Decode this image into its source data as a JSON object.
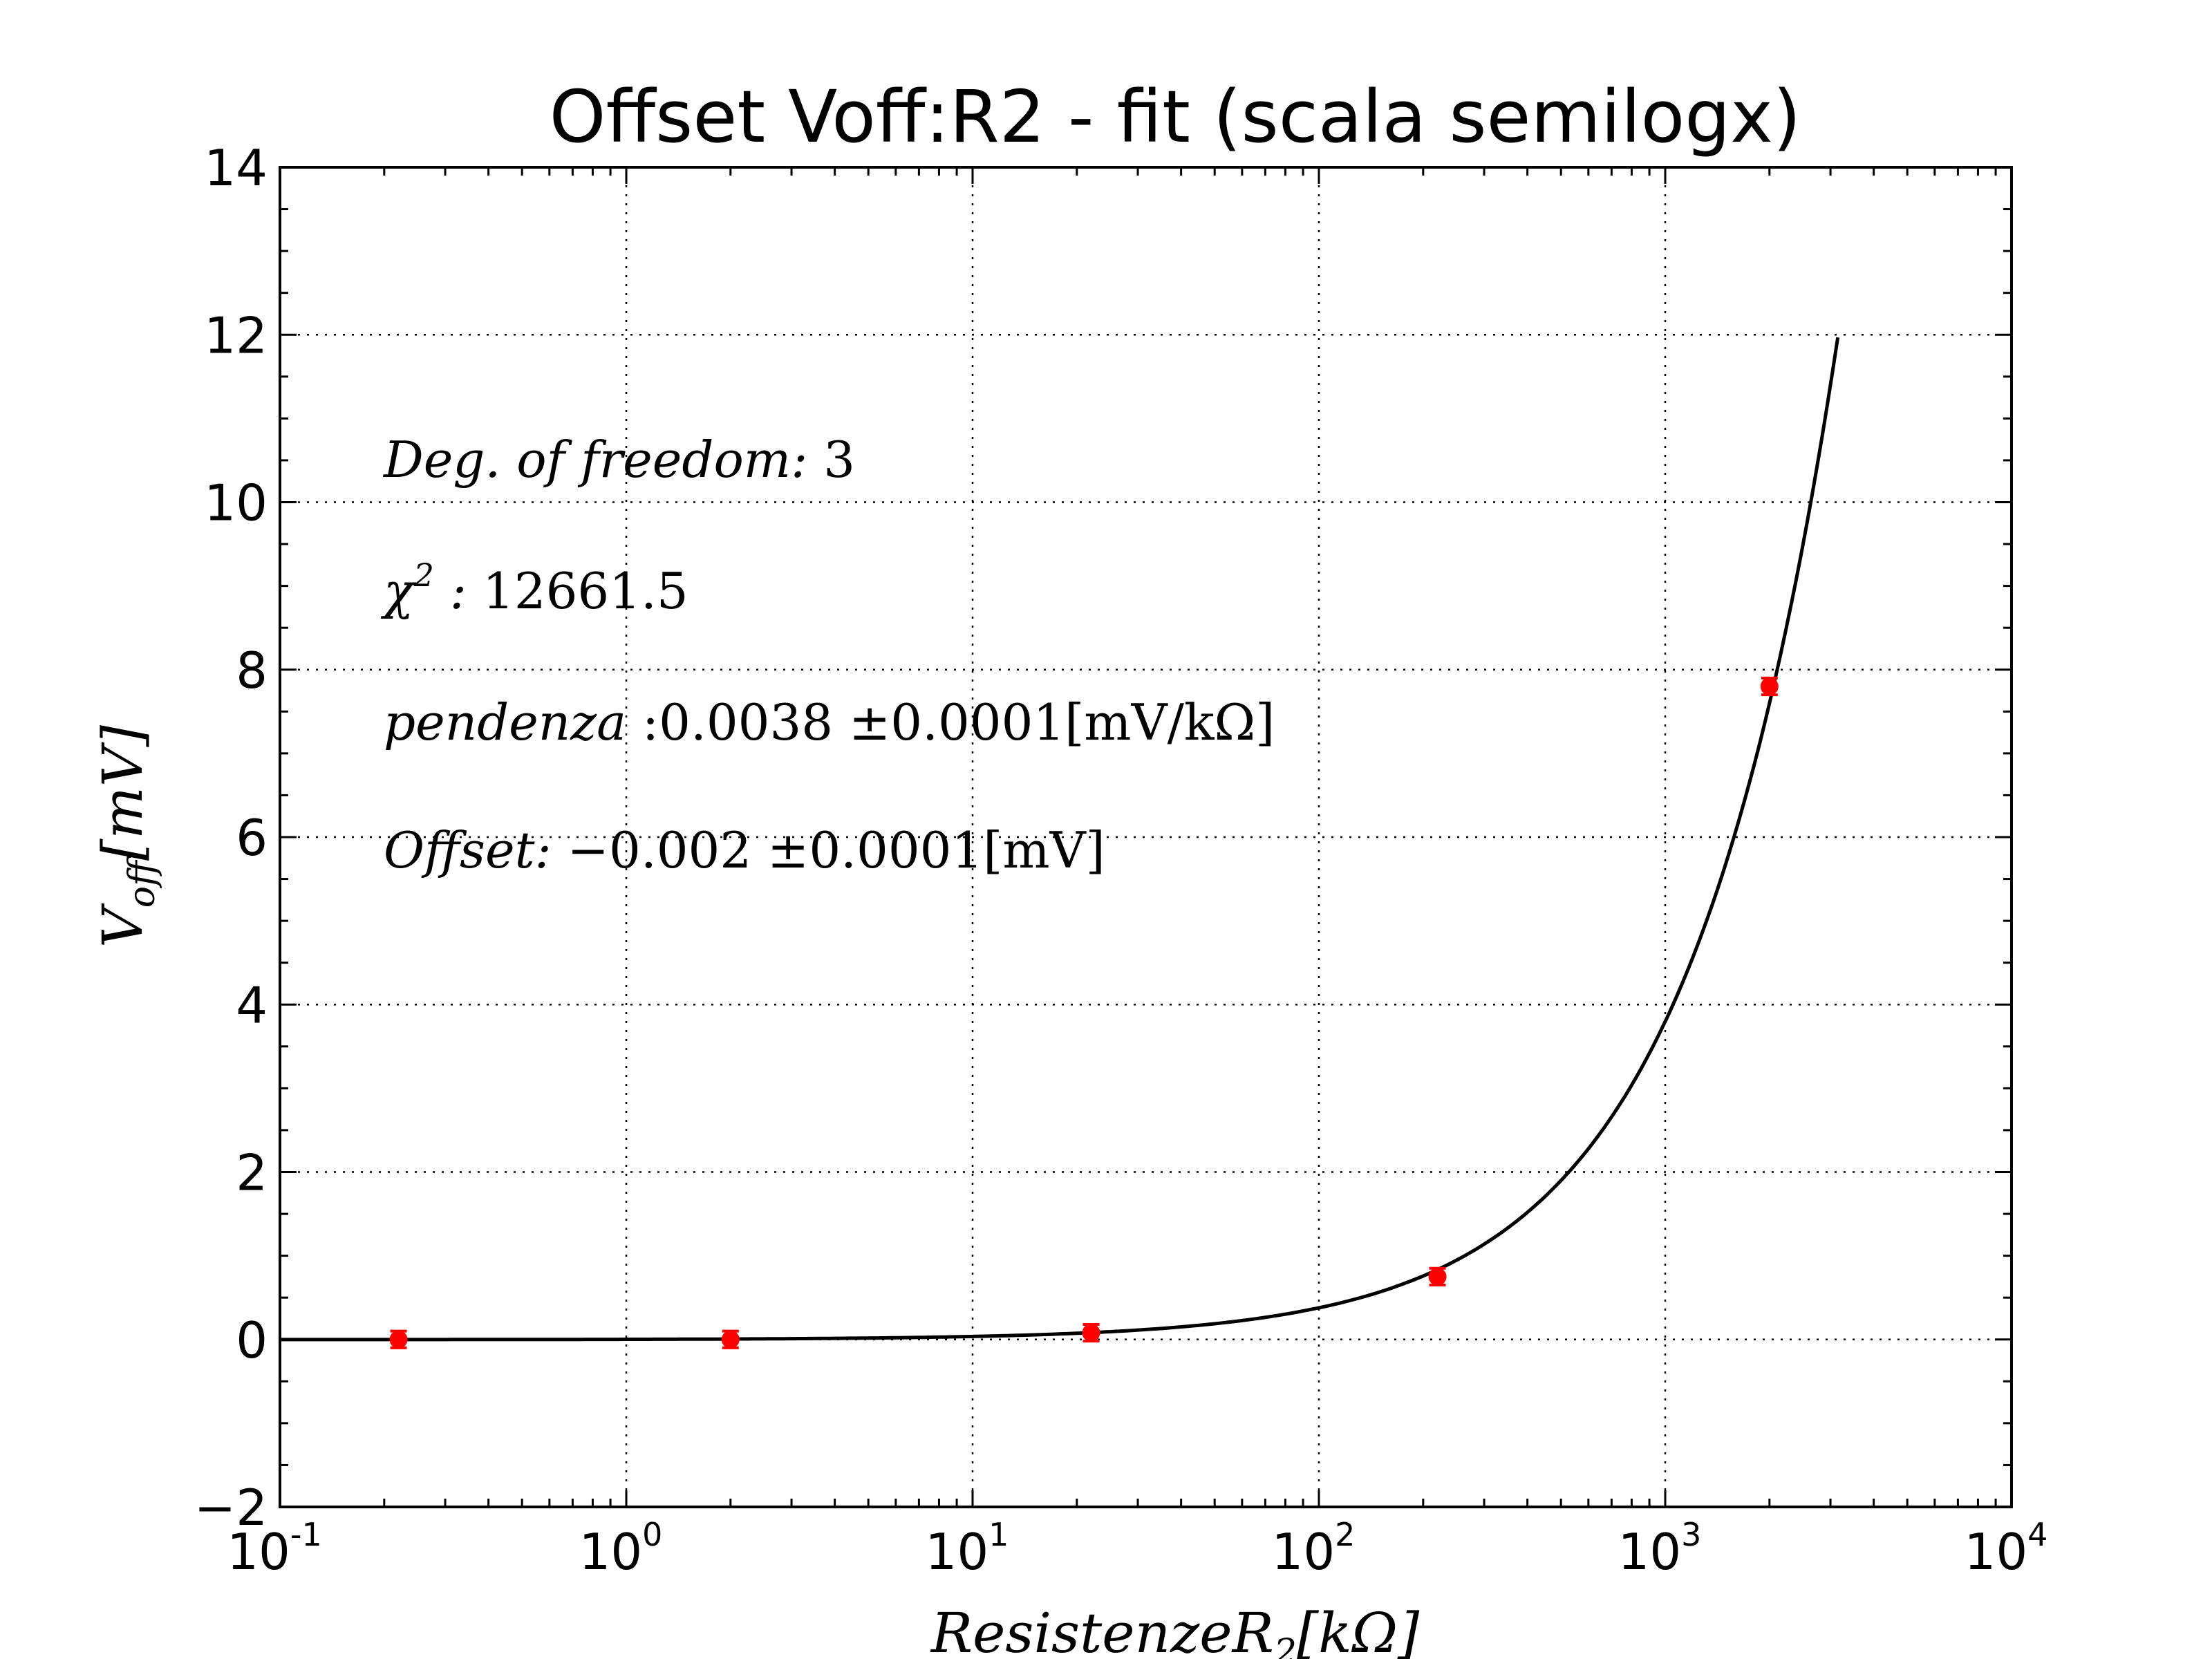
{
  "chart_data": {
    "type": "scatter",
    "title": "Offset Voff:R2 - fit (scala semilogx)",
    "xlabel": "Resistenze R_2 [kΩ]",
    "ylabel": "V_off [mV]",
    "xscale": "log",
    "xlim": [
      0.1,
      10000
    ],
    "ylim": [
      -2,
      14
    ],
    "yticks": [
      -2,
      0,
      2,
      4,
      6,
      8,
      10,
      12,
      14
    ],
    "xtick_exponents": [
      -1,
      0,
      1,
      2,
      3,
      4
    ],
    "grid": true,
    "colors": {
      "points": "#ff0000",
      "fit": "#000000"
    },
    "series": [
      {
        "kind": "points",
        "x": [
          0.22,
          2.0,
          22,
          220,
          2000
        ],
        "y": [
          0.0,
          0.0,
          0.08,
          0.75,
          7.8
        ],
        "y_err": [
          0.1,
          0.1,
          0.1,
          0.1,
          0.1
        ]
      },
      {
        "kind": "fit-line",
        "slope": 0.0038,
        "intercept": -0.002,
        "x_range": [
          0.1,
          3150
        ]
      }
    ],
    "annotations": [
      {
        "label": "Deg. of freedom:",
        "value": "3"
      },
      {
        "label": "χ",
        "sup": "2",
        "sep": ":",
        "value": "12661.5"
      },
      {
        "label": "pendenza",
        "value": ":0.0038 ±0.0001[mV/kΩ]"
      },
      {
        "label": "Offset:",
        "value": "−0.002 ±0.0001[mV]"
      }
    ],
    "xlabel_parts": {
      "main": "ResistenzeR",
      "sub": "2",
      "unit": "[kΩ]"
    },
    "ylabel_parts": {
      "main": "V",
      "sub": "off",
      "unit": "[mV]"
    }
  }
}
